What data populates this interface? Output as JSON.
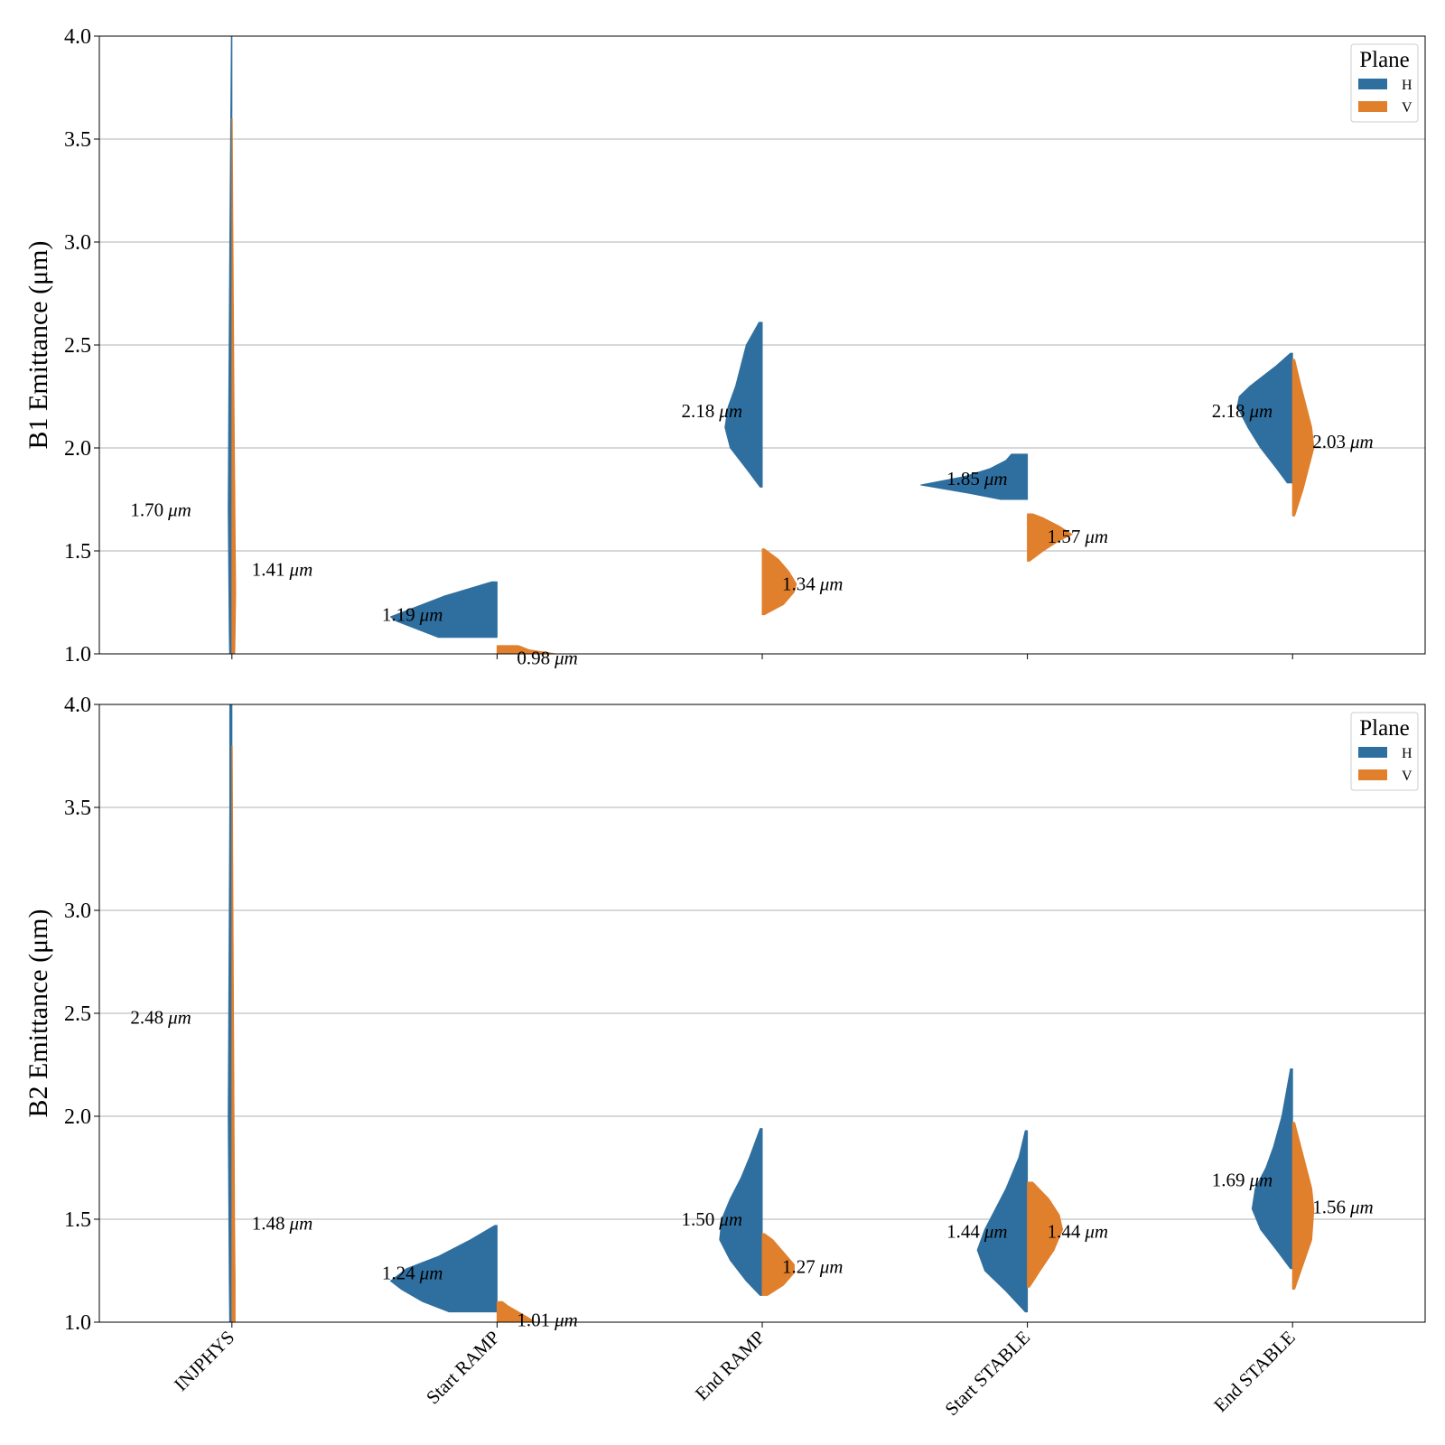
{
  "chart_data": {
    "type": "violin",
    "categories": [
      "INJPHYS",
      "Start RAMP",
      "End RAMP",
      "Start STABLE",
      "End STABLE"
    ],
    "unit": "μm",
    "legend": {
      "title": "Plane",
      "placement": "top-right",
      "entries": [
        "H",
        "V"
      ]
    },
    "colors": {
      "H": "#2f6f9f",
      "V": "#e07f2c"
    },
    "grid": "horizontal",
    "panels": [
      {
        "ylabel": "B1 Emittance (μm)",
        "ylim": [
          1.0,
          4.0
        ],
        "yticks": [
          "1.0",
          "1.5",
          "2.0",
          "2.5",
          "3.0",
          "3.5",
          "4.0"
        ],
        "series": [
          {
            "name": "H",
            "annotations": [
              "1.70",
              "1.19",
              "2.18",
              "1.85",
              "2.18"
            ],
            "violins": [
              {
                "min": 0.95,
                "max": 4.0,
                "profile": [
                  [
                    0.95,
                    0.02
                  ],
                  [
                    1.1,
                    0.025
                  ],
                  [
                    1.4,
                    0.03
                  ],
                  [
                    1.7,
                    0.035
                  ],
                  [
                    2.2,
                    0.03
                  ],
                  [
                    3.0,
                    0.02
                  ],
                  [
                    4.0,
                    0.005
                  ]
                ]
              },
              {
                "min": 1.08,
                "max": 1.35,
                "profile": [
                  [
                    1.08,
                    0.55
                  ],
                  [
                    1.12,
                    0.75
                  ],
                  [
                    1.16,
                    0.95
                  ],
                  [
                    1.18,
                    1.0
                  ],
                  [
                    1.22,
                    0.8
                  ],
                  [
                    1.28,
                    0.5
                  ],
                  [
                    1.35,
                    0.05
                  ]
                ]
              },
              {
                "min": 1.81,
                "max": 2.61,
                "profile": [
                  [
                    1.81,
                    0.02
                  ],
                  [
                    1.9,
                    0.15
                  ],
                  [
                    2.0,
                    0.3
                  ],
                  [
                    2.1,
                    0.35
                  ],
                  [
                    2.2,
                    0.32
                  ],
                  [
                    2.3,
                    0.25
                  ],
                  [
                    2.4,
                    0.2
                  ],
                  [
                    2.5,
                    0.15
                  ],
                  [
                    2.61,
                    0.03
                  ]
                ]
              },
              {
                "min": 1.75,
                "max": 1.97,
                "profile": [
                  [
                    1.75,
                    0.25
                  ],
                  [
                    1.78,
                    0.55
                  ],
                  [
                    1.82,
                    1.0
                  ],
                  [
                    1.86,
                    0.6
                  ],
                  [
                    1.9,
                    0.35
                  ],
                  [
                    1.94,
                    0.2
                  ],
                  [
                    1.97,
                    0.15
                  ]
                ]
              },
              {
                "min": 1.83,
                "max": 2.46,
                "profile": [
                  [
                    1.83,
                    0.05
                  ],
                  [
                    1.9,
                    0.15
                  ],
                  [
                    2.0,
                    0.3
                  ],
                  [
                    2.1,
                    0.42
                  ],
                  [
                    2.2,
                    0.52
                  ],
                  [
                    2.25,
                    0.5
                  ],
                  [
                    2.3,
                    0.4
                  ],
                  [
                    2.4,
                    0.15
                  ],
                  [
                    2.46,
                    0.02
                  ]
                ]
              }
            ]
          },
          {
            "name": "V",
            "annotations": [
              "1.41",
              "0.98",
              "1.34",
              "1.57",
              "2.03"
            ],
            "violins": [
              {
                "min": 0.95,
                "max": 3.6,
                "profile": [
                  [
                    0.95,
                    0.025
                  ],
                  [
                    1.1,
                    0.03
                  ],
                  [
                    1.3,
                    0.035
                  ],
                  [
                    1.6,
                    0.03
                  ],
                  [
                    2.2,
                    0.02
                  ],
                  [
                    3.0,
                    0.01
                  ],
                  [
                    3.6,
                    0.003
                  ]
                ]
              },
              {
                "min": 0.99,
                "max": 1.04,
                "profile": [
                  [
                    0.99,
                    0.45
                  ],
                  [
                    1.0,
                    0.55
                  ],
                  [
                    1.02,
                    0.3
                  ],
                  [
                    1.04,
                    0.2
                  ]
                ]
              },
              {
                "min": 1.19,
                "max": 1.51,
                "profile": [
                  [
                    1.19,
                    0.02
                  ],
                  [
                    1.24,
                    0.2
                  ],
                  [
                    1.3,
                    0.3
                  ],
                  [
                    1.34,
                    0.32
                  ],
                  [
                    1.4,
                    0.25
                  ],
                  [
                    1.46,
                    0.15
                  ],
                  [
                    1.51,
                    0.02
                  ]
                ]
              },
              {
                "min": 1.45,
                "max": 1.68,
                "profile": [
                  [
                    1.45,
                    0.02
                  ],
                  [
                    1.5,
                    0.15
                  ],
                  [
                    1.55,
                    0.3
                  ],
                  [
                    1.58,
                    0.42
                  ],
                  [
                    1.62,
                    0.3
                  ],
                  [
                    1.66,
                    0.15
                  ],
                  [
                    1.68,
                    0.05
                  ]
                ]
              },
              {
                "min": 1.67,
                "max": 2.43,
                "profile": [
                  [
                    1.67,
                    0.02
                  ],
                  [
                    1.8,
                    0.1
                  ],
                  [
                    1.9,
                    0.15
                  ],
                  [
                    2.0,
                    0.2
                  ],
                  [
                    2.1,
                    0.18
                  ],
                  [
                    2.2,
                    0.13
                  ],
                  [
                    2.3,
                    0.08
                  ],
                  [
                    2.43,
                    0.02
                  ]
                ]
              }
            ]
          }
        ]
      },
      {
        "ylabel": "B2 Emittance (μm)",
        "ylim": [
          1.0,
          4.0
        ],
        "yticks": [
          "1.0",
          "1.5",
          "2.0",
          "2.5",
          "3.0",
          "3.5",
          "4.0"
        ],
        "series": [
          {
            "name": "H",
            "annotations": [
              "2.48",
              "1.24",
              "1.50",
              "1.44",
              "1.69"
            ],
            "violins": [
              {
                "min": 0.95,
                "max": 4.0,
                "profile": [
                  [
                    0.95,
                    0.02
                  ],
                  [
                    1.2,
                    0.025
                  ],
                  [
                    1.6,
                    0.03
                  ],
                  [
                    2.0,
                    0.035
                  ],
                  [
                    2.5,
                    0.03
                  ],
                  [
                    3.0,
                    0.025
                  ],
                  [
                    3.5,
                    0.02
                  ],
                  [
                    4.0,
                    0.02
                  ]
                ]
              },
              {
                "min": 1.05,
                "max": 1.47,
                "profile": [
                  [
                    1.05,
                    0.45
                  ],
                  [
                    1.1,
                    0.7
                  ],
                  [
                    1.16,
                    0.9
                  ],
                  [
                    1.2,
                    1.0
                  ],
                  [
                    1.26,
                    0.85
                  ],
                  [
                    1.32,
                    0.55
                  ],
                  [
                    1.4,
                    0.25
                  ],
                  [
                    1.47,
                    0.02
                  ]
                ]
              },
              {
                "min": 1.13,
                "max": 1.94,
                "profile": [
                  [
                    1.13,
                    0.02
                  ],
                  [
                    1.2,
                    0.15
                  ],
                  [
                    1.3,
                    0.3
                  ],
                  [
                    1.4,
                    0.4
                  ],
                  [
                    1.5,
                    0.38
                  ],
                  [
                    1.6,
                    0.3
                  ],
                  [
                    1.7,
                    0.2
                  ],
                  [
                    1.8,
                    0.12
                  ],
                  [
                    1.94,
                    0.02
                  ]
                ]
              },
              {
                "min": 1.05,
                "max": 1.93,
                "profile": [
                  [
                    1.05,
                    0.02
                  ],
                  [
                    1.15,
                    0.2
                  ],
                  [
                    1.25,
                    0.4
                  ],
                  [
                    1.35,
                    0.47
                  ],
                  [
                    1.45,
                    0.4
                  ],
                  [
                    1.55,
                    0.3
                  ],
                  [
                    1.65,
                    0.2
                  ],
                  [
                    1.8,
                    0.08
                  ],
                  [
                    1.93,
                    0.02
                  ]
                ]
              },
              {
                "min": 1.26,
                "max": 2.23,
                "profile": [
                  [
                    1.26,
                    0.02
                  ],
                  [
                    1.35,
                    0.15
                  ],
                  [
                    1.45,
                    0.3
                  ],
                  [
                    1.55,
                    0.38
                  ],
                  [
                    1.65,
                    0.35
                  ],
                  [
                    1.75,
                    0.25
                  ],
                  [
                    1.85,
                    0.18
                  ],
                  [
                    2.0,
                    0.1
                  ],
                  [
                    2.23,
                    0.02
                  ]
                ]
              }
            ]
          },
          {
            "name": "V",
            "annotations": [
              "1.48",
              "1.01",
              "1.27",
              "1.44",
              "1.56"
            ],
            "violins": [
              {
                "min": 0.95,
                "max": 3.8,
                "profile": [
                  [
                    0.95,
                    0.03
                  ],
                  [
                    1.2,
                    0.03
                  ],
                  [
                    1.5,
                    0.025
                  ],
                  [
                    2.0,
                    0.02
                  ],
                  [
                    3.0,
                    0.01
                  ],
                  [
                    3.8,
                    0.003
                  ]
                ]
              },
              {
                "min": 0.99,
                "max": 1.1,
                "profile": [
                  [
                    0.99,
                    0.38
                  ],
                  [
                    1.02,
                    0.3
                  ],
                  [
                    1.05,
                    0.2
                  ],
                  [
                    1.08,
                    0.1
                  ],
                  [
                    1.1,
                    0.05
                  ]
                ]
              },
              {
                "min": 1.13,
                "max": 1.43,
                "profile": [
                  [
                    1.13,
                    0.05
                  ],
                  [
                    1.18,
                    0.2
                  ],
                  [
                    1.24,
                    0.3
                  ],
                  [
                    1.28,
                    0.3
                  ],
                  [
                    1.34,
                    0.2
                  ],
                  [
                    1.4,
                    0.1
                  ],
                  [
                    1.43,
                    0.02
                  ]
                ]
              },
              {
                "min": 1.17,
                "max": 1.68,
                "profile": [
                  [
                    1.17,
                    0.02
                  ],
                  [
                    1.25,
                    0.12
                  ],
                  [
                    1.35,
                    0.25
                  ],
                  [
                    1.45,
                    0.33
                  ],
                  [
                    1.52,
                    0.3
                  ],
                  [
                    1.6,
                    0.2
                  ],
                  [
                    1.68,
                    0.05
                  ]
                ]
              },
              {
                "min": 1.16,
                "max": 1.97,
                "profile": [
                  [
                    1.16,
                    0.02
                  ],
                  [
                    1.25,
                    0.08
                  ],
                  [
                    1.4,
                    0.18
                  ],
                  [
                    1.55,
                    0.2
                  ],
                  [
                    1.65,
                    0.18
                  ],
                  [
                    1.75,
                    0.13
                  ],
                  [
                    1.85,
                    0.08
                  ],
                  [
                    1.97,
                    0.02
                  ]
                ]
              }
            ]
          }
        ]
      }
    ]
  }
}
